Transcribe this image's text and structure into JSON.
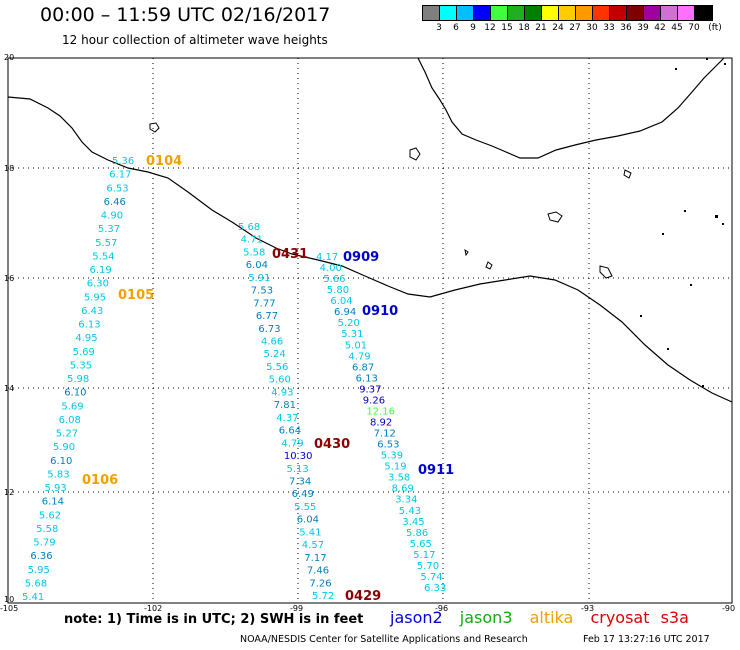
{
  "title": "00:00 – 11:59 UTC 02/16/2017",
  "subtitle": "12 hour collection of altimeter wave heights",
  "legend": {
    "labels": [
      "3",
      "6",
      "9",
      "12",
      "15",
      "18",
      "21",
      "24",
      "27",
      "30",
      "33",
      "36",
      "39",
      "42",
      "45",
      "70",
      "(ft)"
    ],
    "colors": [
      "#7f7f7f",
      "#00ffff",
      "#00c0ff",
      "#0000ff",
      "#3fff3f",
      "#1faf1f",
      "#007f00",
      "#ffff00",
      "#ffcc00",
      "#ff9900",
      "#ff3300",
      "#c00000",
      "#800000",
      "#a000a0",
      "#d070d0",
      "#ff70ff",
      "#000000"
    ]
  },
  "axes": {
    "x_ticks": [
      "-105",
      "-102",
      "-99",
      "-96",
      "-93",
      "-90"
    ],
    "y_ticks": [
      "20",
      "18",
      "16",
      "14",
      "12",
      "10"
    ]
  },
  "passes": [
    {
      "label": "0104",
      "color": "#f0a000"
    },
    {
      "label": "0105",
      "color": "#f0a000"
    },
    {
      "label": "0106",
      "color": "#f0a000"
    },
    {
      "label": "0431",
      "color": "#8b0000"
    },
    {
      "label": "0430",
      "color": "#8b0000"
    },
    {
      "label": "0429",
      "color": "#8b0000"
    },
    {
      "label": "0909",
      "color": "#0000cc"
    },
    {
      "label": "0910",
      "color": "#0000cc"
    },
    {
      "label": "0911",
      "color": "#0000cc"
    }
  ],
  "tracks": [
    {
      "name": "track-a",
      "values": [
        "5.36",
        "6.17",
        "6.53",
        "6.46",
        "4.90",
        "5.37",
        "5.57",
        "5.54",
        "6.19",
        "6.30",
        "5.95",
        "6.43",
        "6.13",
        "4.95",
        "5.69",
        "5.35",
        "5.98",
        "6.10",
        "5.69",
        "6.08",
        "5.27",
        "5.90",
        "6.10",
        "5.83",
        "5.93",
        "6.14",
        "5.62",
        "5.58",
        "5.79",
        "6.36",
        "5.95",
        "5.68",
        "5.41"
      ],
      "colors": {
        "6.46": "#0080c0",
        "6.10": "#0080c0",
        "6.36": "#0080c0",
        "6.14": "#0080c0"
      }
    },
    {
      "name": "track-b",
      "values": [
        "5.68",
        "4.71",
        "5.58",
        "6.04",
        "5.91",
        "7.53",
        "7.77",
        "6.77",
        "6.73",
        "4.66",
        "5.24",
        "5.56",
        "5.60",
        "4.93",
        "7.81",
        "4.37",
        "6.64",
        "4.79",
        "10.30",
        "5.13",
        "7.34",
        "6.49",
        "5.55",
        "6.04",
        "5.41",
        "4.57",
        "7.17",
        "7.46",
        "7.26",
        "5.72"
      ],
      "colors": {
        "6.04": "#0080c0",
        "7.53": "#0080c0",
        "7.77": "#0080c0",
        "6.77": "#0080c0",
        "6.73": "#0080c0",
        "7.81": "#0080c0",
        "6.64": "#0080c0",
        "10.30": "#0000cc",
        "7.34": "#0080c0",
        "6.49": "#0080c0",
        "7.17": "#0080c0",
        "7.46": "#0080c0",
        "7.26": "#0080c0"
      }
    },
    {
      "name": "track-c",
      "values": [
        "4.17",
        "4.00",
        "5.66",
        "5.80",
        "6.04",
        "6.94",
        "5.20",
        "5.31",
        "5.01",
        "4.79",
        "6.87",
        "6.13",
        "9.37",
        "9.26",
        "12.16",
        "8.92",
        "7.12",
        "6.53",
        "5.39",
        "5.19",
        "3.58",
        "8.69",
        "3.34",
        "5.43",
        "3.45",
        "5.86",
        "5.65",
        "5.17",
        "5.70",
        "5.74",
        "6.33"
      ],
      "colors": {
        "6.94": "#0080c0",
        "6.87": "#0080c0",
        "6.13": "#0080c0",
        "9.37": "#0000cc",
        "9.26": "#0000cc",
        "12.16": "#3fff3f",
        "8.92": "#0000cc",
        "7.12": "#0080c0",
        "6.53": "#0080c0"
      }
    }
  ],
  "note": "note: 1) Time is in UTC; 2) SWH is in feet",
  "satellites": [
    {
      "name": "jason2",
      "color": "#0000dd"
    },
    {
      "name": "jason3",
      "color": "#11aa11"
    },
    {
      "name": "altika",
      "color": "#f0a000"
    },
    {
      "name": "cryosat",
      "color": "#dd0000"
    },
    {
      "name": "s3a",
      "color": "#dd0000"
    }
  ],
  "credit": "NOAA/NESDIS Center for Satellite Applications and Research",
  "timestamp": "Feb 17 13:27:16 UTC 2017"
}
